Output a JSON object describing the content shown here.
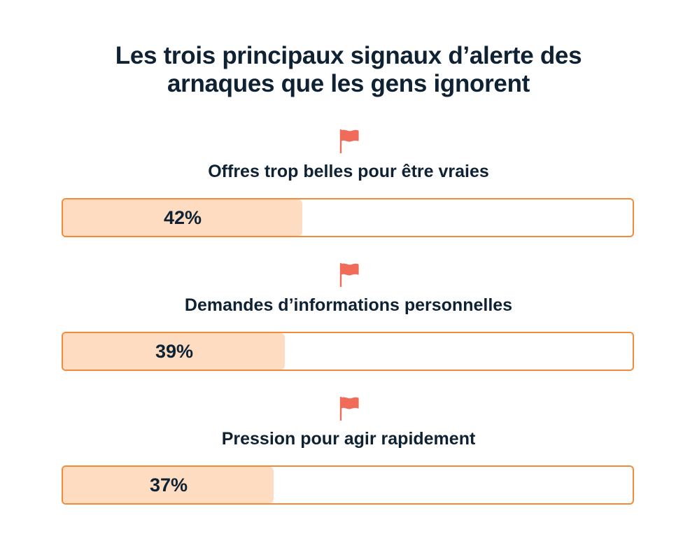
{
  "title_lines": [
    "Les trois principaux signaux d’alerte des",
    "arnaques que les gens ignorent"
  ],
  "colors": {
    "flag": "#f06b5a",
    "bar_border": "#f28a3a",
    "bar_fill": "#fedcc2",
    "text": "#0f2233"
  },
  "chart_data": {
    "type": "bar",
    "orientation": "horizontal",
    "title": "Les trois principaux signaux d’alerte des arnaques que les gens ignorent",
    "categories": [
      "Offres trop belles pour être vraies",
      "Demandes d’informations personnelles",
      "Pression pour agir rapidement"
    ],
    "values": [
      42,
      39,
      37
    ],
    "value_labels": [
      "42%",
      "39%",
      "37%"
    ],
    "xlim": [
      0,
      100
    ],
    "unit": "%",
    "grid": false,
    "legend": "none",
    "icon": "flag-icon"
  }
}
